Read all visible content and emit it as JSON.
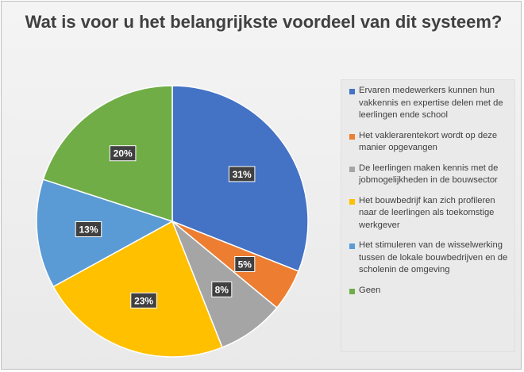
{
  "chart_data": {
    "type": "pie",
    "title": "Wat is voor u het belangrijkste voordeel van dit systeem?",
    "categories": [
      "Ervaren medewerkers kunnen hun vakkennis en expertise delen met de leerlingen ende school",
      "Het vaklerarentekort wordt op deze manier opgevangen",
      "De leerlingen maken kennis met de jobmogelijkheden in de bouwsector",
      "Het bouwbedrijf kan zich profileren naar de leerlingen als toekomstige werkgever",
      "Het stimuleren van de wisselwerking tussen de lokale bouwbedrijven en de scholenin de omgeving",
      "Geen"
    ],
    "values": [
      31,
      5,
      8,
      23,
      13,
      20
    ],
    "data_labels": [
      "31%",
      "5%",
      "8%",
      "23%",
      "13%",
      "20%"
    ],
    "colors": [
      "#4472c4",
      "#ed7d31",
      "#a5a5a5",
      "#ffc000",
      "#5b9bd5",
      "#70ad47"
    ],
    "legend_position": "right"
  }
}
